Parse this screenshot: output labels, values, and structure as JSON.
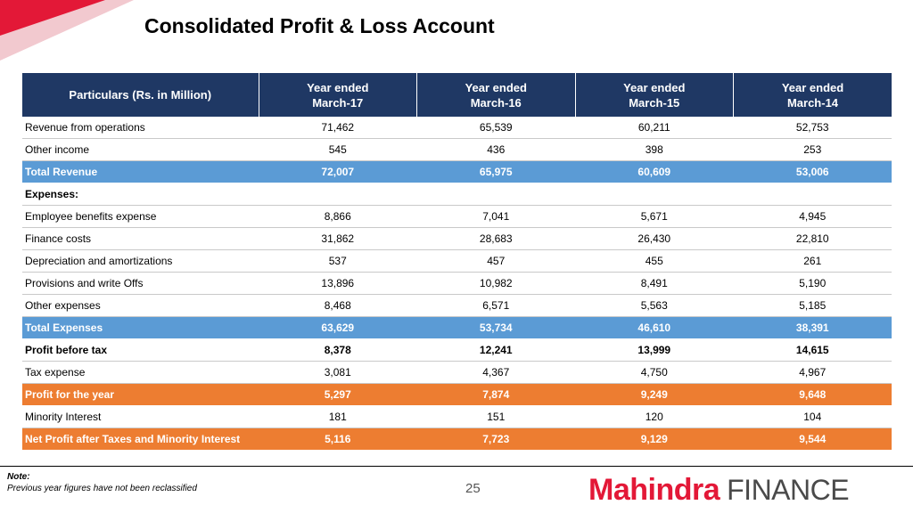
{
  "slide": {
    "title": "Consolidated Profit & Loss Account",
    "page_number": "25",
    "note_heading": "Note:",
    "note_text": "Previous year figures have not been reclassified",
    "logo_brand": "Mahindra",
    "logo_word": "FINANCE",
    "colors": {
      "header": "#1f3864",
      "blue_row": "#5b9bd5",
      "orange_row": "#ed7d31",
      "brand_red": "#e31837"
    }
  },
  "table": {
    "headers": [
      {
        "line1": "Particulars (Rs. in Million)",
        "line2": ""
      },
      {
        "line1": "Year ended",
        "line2": "March-17"
      },
      {
        "line1": "Year ended",
        "line2": "March-16"
      },
      {
        "line1": "Year ended",
        "line2": "March-15"
      },
      {
        "line1": "Year ended",
        "line2": "March-14"
      }
    ],
    "rows": [
      {
        "style": "normal",
        "cells": [
          "Revenue from operations",
          "71,462",
          "65,539",
          "60,211",
          "52,753"
        ]
      },
      {
        "style": "normal",
        "cells": [
          "Other income",
          "545",
          "436",
          "398",
          "253"
        ]
      },
      {
        "style": "blue",
        "cells": [
          "Total Revenue",
          "72,007",
          "65,975",
          "60,609",
          "53,006"
        ]
      },
      {
        "style": "bold",
        "cells": [
          "Expenses:",
          "",
          "",
          "",
          ""
        ]
      },
      {
        "style": "normal",
        "cells": [
          "Employee benefits expense",
          "8,866",
          "7,041",
          "5,671",
          "4,945"
        ]
      },
      {
        "style": "normal",
        "cells": [
          "Finance costs",
          "31,862",
          "28,683",
          "26,430",
          "22,810"
        ]
      },
      {
        "style": "normal",
        "cells": [
          "Depreciation and amortizations",
          "537",
          "457",
          "455",
          "261"
        ]
      },
      {
        "style": "normal",
        "cells": [
          "Provisions and write Offs",
          "13,896",
          "10,982",
          "8,491",
          "5,190"
        ]
      },
      {
        "style": "normal",
        "cells": [
          "Other expenses",
          "8,468",
          "6,571",
          "5,563",
          "5,185"
        ]
      },
      {
        "style": "blue",
        "cells": [
          "Total Expenses",
          "63,629",
          "53,734",
          "46,610",
          "38,391"
        ]
      },
      {
        "style": "bold",
        "cells": [
          "Profit before tax",
          "8,378",
          "12,241",
          "13,999",
          "14,615"
        ]
      },
      {
        "style": "normal",
        "cells": [
          "Tax expense",
          "3,081",
          "4,367",
          "4,750",
          "4,967"
        ]
      },
      {
        "style": "orange",
        "cells": [
          "Profit for the year",
          "5,297",
          "7,874",
          "9,249",
          "9,648"
        ]
      },
      {
        "style": "normal",
        "cells": [
          "Minority Interest",
          "181",
          "151",
          "120",
          "104"
        ]
      },
      {
        "style": "orange",
        "cells": [
          "Net Profit after Taxes and Minority Interest",
          "5,116",
          "7,723",
          "9,129",
          "9,544"
        ]
      }
    ]
  }
}
